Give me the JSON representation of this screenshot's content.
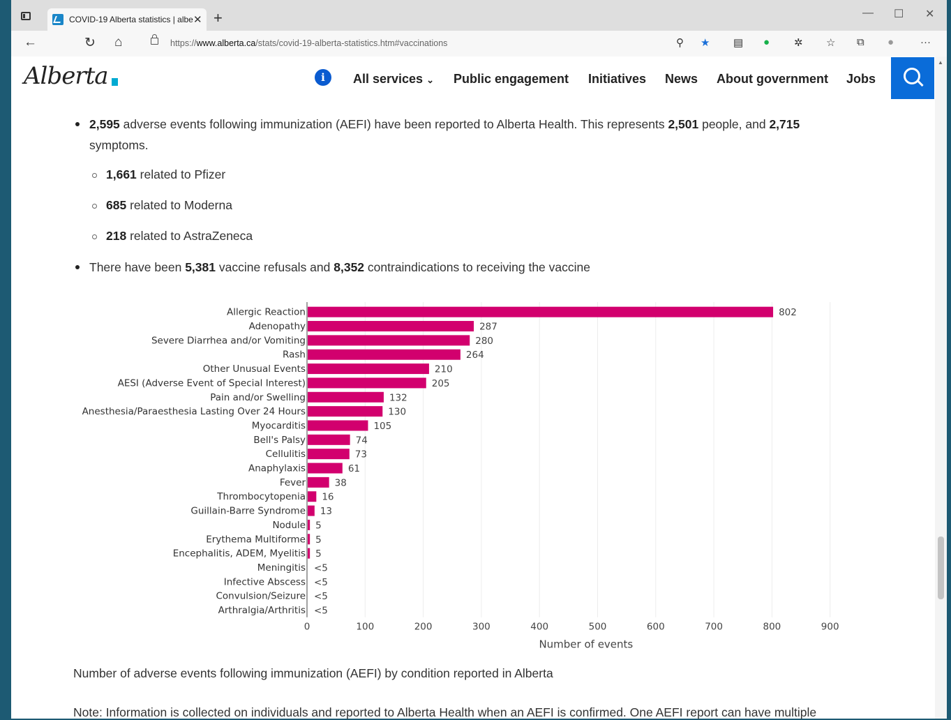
{
  "browser": {
    "tab_title": "COVID-19 Alberta statistics | albe",
    "url_prefix": "https://",
    "url_host": "www.alberta.ca",
    "url_path": "/stats/covid-19-alberta-statistics.htm#vaccinations"
  },
  "site": {
    "logo_text": "Alberta",
    "nav": [
      "All services",
      "Public engagement",
      "Initiatives",
      "News",
      "About government",
      "Jobs"
    ]
  },
  "content": {
    "aefi_count": "2,595",
    "aefi_text_a": " adverse events following immunization (AEFI) have been reported to Alberta Health. This represents ",
    "people_count": "2,501",
    "aefi_text_b": " people, and ",
    "symptom_count": "2,715",
    "aefi_text_c": " symptoms.",
    "sub_items": [
      {
        "num": "1,661",
        "text": " related to Pfizer"
      },
      {
        "num": "685",
        "text": " related to Moderna"
      },
      {
        "num": "218",
        "text": " related to AstraZeneca"
      }
    ],
    "refusal_text_a": "There have been ",
    "refusal_count": "5,381",
    "refusal_text_b": " vaccine refusals and ",
    "contra_count": "8,352",
    "refusal_text_c": " contraindications to receiving the vaccine",
    "caption": "Number of adverse events following immunization (AEFI) by condition reported in Alberta",
    "note": "Note: Information is collected on individuals and reported to Alberta Health when an AEFI is confirmed. One AEFI report can have multiple"
  },
  "chart_data": {
    "type": "bar",
    "orientation": "horizontal",
    "categories": [
      "Allergic Reaction",
      "Adenopathy",
      "Severe Diarrhea and/or Vomiting",
      "Rash",
      "Other Unusual Events",
      "AESI (Adverse Event of Special Interest)",
      "Pain and/or Swelling",
      "Anesthesia/Paraesthesia Lasting Over 24 Hours",
      "Myocarditis",
      "Bell's Palsy",
      "Cellulitis",
      "Anaphylaxis",
      "Fever",
      "Thrombocytopenia",
      "Guillain-Barre Syndrome",
      "Nodule",
      "Erythema Multiforme",
      "Encephalitis, ADEM, Myelitis",
      "Meningitis",
      "Infective Abscess",
      "Convulsion/Seizure",
      "Arthralgia/Arthritis"
    ],
    "values": [
      802,
      287,
      280,
      264,
      210,
      205,
      132,
      130,
      105,
      74,
      73,
      61,
      38,
      16,
      13,
      5,
      5,
      5,
      0,
      0,
      0,
      0
    ],
    "labels": [
      "802",
      "287",
      "280",
      "264",
      "210",
      "205",
      "132",
      "130",
      "105",
      "74",
      "73",
      "61",
      "38",
      "16",
      "13",
      "5",
      "5",
      "5",
      "<5",
      "<5",
      "<5",
      "<5"
    ],
    "xticks": [
      0,
      100,
      200,
      300,
      400,
      500,
      600,
      700,
      800,
      900
    ],
    "xlabel": "Number of events",
    "xlim": [
      0,
      900
    ],
    "color": "#d2006e",
    "grid": "vertical"
  }
}
